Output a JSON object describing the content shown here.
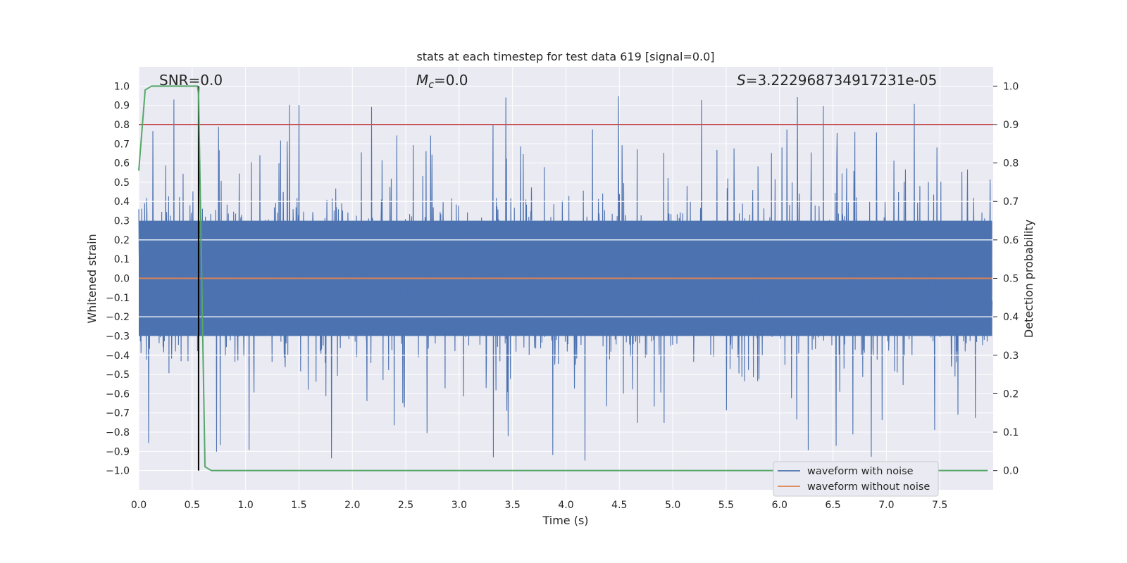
{
  "chart_data": {
    "type": "line",
    "title": "stats at each timestep for test data 619 [signal=0.0]",
    "xlabel": "Time (s)",
    "ylabel_left": "Whitened strain",
    "ylabel_right": "Detection probability",
    "xlim": [
      0.0,
      8.0
    ],
    "ylim_left": [
      -1.1,
      1.1
    ],
    "ylim_right": [
      -0.05,
      1.05
    ],
    "xticks": [
      0.0,
      0.5,
      1.0,
      1.5,
      2.0,
      2.5,
      3.0,
      3.5,
      4.0,
      4.5,
      5.0,
      5.5,
      6.0,
      6.5,
      7.0,
      7.5
    ],
    "xtick_labels": [
      "0.0",
      "0.5",
      "1.0",
      "1.5",
      "2.0",
      "2.5",
      "3.0",
      "3.5",
      "4.0",
      "4.5",
      "5.0",
      "5.5",
      "6.0",
      "6.5",
      "7.0",
      "7.5"
    ],
    "yticks_left": [
      1.0,
      0.9,
      0.8,
      0.7,
      0.6,
      0.5,
      0.4,
      0.3,
      0.2,
      0.1,
      0.0,
      -0.1,
      -0.2,
      -0.3,
      -0.4,
      -0.5,
      -0.6,
      -0.7,
      -0.8,
      -0.9,
      -1.0
    ],
    "ytick_labels_left": [
      "1.0",
      "0.9",
      "0.8",
      "0.7",
      "0.6",
      "0.5",
      "0.4",
      "0.3",
      "0.2",
      "0.1",
      "0.0",
      "−0.1",
      "−0.2",
      "−0.3",
      "−0.4",
      "−0.5",
      "−0.6",
      "−0.7",
      "−0.8",
      "−0.9",
      "−1.0"
    ],
    "yticks_right": [
      1.0,
      0.9,
      0.8,
      0.7,
      0.6,
      0.5,
      0.4,
      0.3,
      0.2,
      0.1,
      0.0
    ],
    "ytick_labels_right": [
      "1.0",
      "0.9",
      "0.8",
      "0.7",
      "0.6",
      "0.5",
      "0.4",
      "0.3",
      "0.2",
      "0.1",
      "0.0"
    ],
    "annotations": {
      "snr": "SNR=0.0",
      "mc_symbol": "M",
      "mc_sub": "c",
      "mc_value": "=0.0",
      "s_symbol": "S",
      "s_value": "=3.222968734917231e-05"
    },
    "series": [
      {
        "name": "waveform with noise",
        "axis": "left",
        "color": "#4c72b0",
        "style": "dense noise, roughly uniform amplitude about 0.4 with spikes reaching about 0.95 and -1.0",
        "t_start": 0.0,
        "t_end": 7.99,
        "amplitude": 0.4,
        "peak_max": 0.95,
        "peak_min": -1.0
      },
      {
        "name": "waveform without noise",
        "axis": "left",
        "color": "#dd8452",
        "x": [
          0.0,
          7.99
        ],
        "y": [
          0.0,
          0.0
        ]
      },
      {
        "name": "detection probability",
        "axis": "right",
        "color": "#55a868",
        "x": [
          0.0,
          0.06,
          0.12,
          0.2,
          0.3,
          0.4,
          0.5,
          0.55,
          0.56,
          0.62,
          0.68,
          0.8,
          1.5,
          3.0,
          5.0,
          7.95
        ],
        "y": [
          0.78,
          0.99,
          1.0,
          1.0,
          1.0,
          1.0,
          1.0,
          1.0,
          0.98,
          0.01,
          0.0,
          0.0,
          0.0,
          0.0,
          0.0,
          0.0
        ]
      }
    ],
    "threshold": {
      "axis": "right",
      "value": 0.9,
      "color": "#c44e52"
    },
    "vertical_marker": {
      "axis": "left",
      "x": 0.56,
      "y_from": -1.0,
      "y_to": 1.0,
      "color": "#000000"
    },
    "legend": {
      "location": "lower-right",
      "entries": [
        "waveform with noise",
        "waveform without noise"
      ]
    },
    "grid": true,
    "background": "#eaeaf2"
  }
}
